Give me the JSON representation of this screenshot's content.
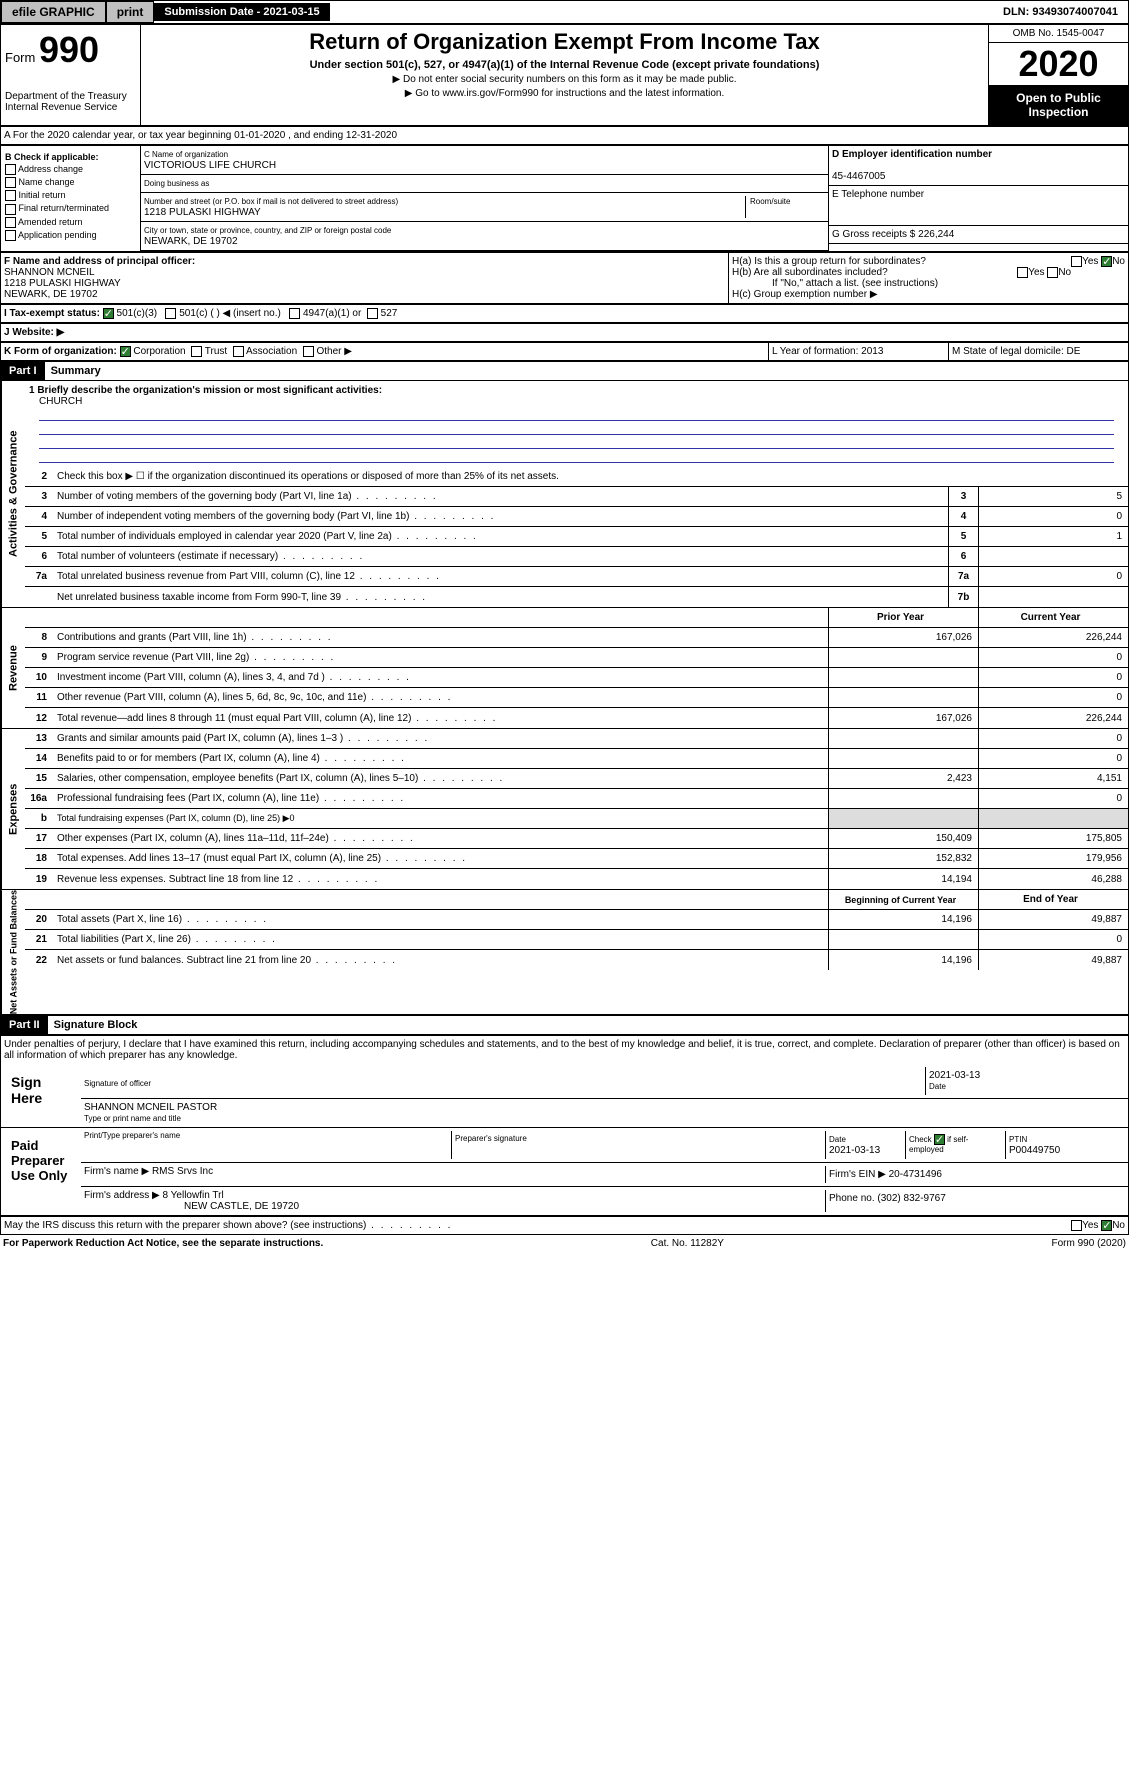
{
  "top": {
    "efile": "efile GRAPHIC",
    "print": "print",
    "sub_label": "Submission Date - 2021-03-15",
    "dln": "DLN: 93493074007041"
  },
  "header": {
    "form": "Form",
    "form_num": "990",
    "dept": "Department of the Treasury\nInternal Revenue Service",
    "title": "Return of Organization Exempt From Income Tax",
    "sub": "Under section 501(c), 527, or 4947(a)(1) of the Internal Revenue Code (except private foundations)",
    "note1": "▶ Do not enter social security numbers on this form as it may be made public.",
    "note2": "▶ Go to www.irs.gov/Form990 for instructions and the latest information.",
    "omb": "OMB No. 1545-0047",
    "year": "2020",
    "open": "Open to Public Inspection"
  },
  "sectionA": "A For the 2020 calendar year, or tax year beginning 01-01-2020    , and ending 12-31-2020",
  "colB": {
    "title": "B Check if applicable:",
    "items": [
      "Address change",
      "Name change",
      "Initial return",
      "Final return/terminated",
      "Amended return",
      "Application pending"
    ]
  },
  "colC": {
    "name_label": "C Name of organization",
    "name": "VICTORIOUS LIFE CHURCH",
    "dba": "Doing business as",
    "addr_label": "Number and street (or P.O. box if mail is not delivered to street address)",
    "addr": "1218 PULASKI HIGHWAY",
    "room": "Room/suite",
    "city_label": "City or town, state or province, country, and ZIP or foreign postal code",
    "city": "NEWARK, DE  19702"
  },
  "colD": {
    "ein_label": "D Employer identification number",
    "ein": "45-4467005",
    "phone_label": "E Telephone number",
    "gross_label": "G Gross receipts $ 226,244"
  },
  "sectionF": {
    "label": "F  Name and address of principal officer:",
    "name": "SHANNON MCNEIL",
    "addr": "1218 PULASKI HIGHWAY",
    "city": "NEWARK, DE  19702"
  },
  "sectionH": {
    "a": "H(a)  Is this a group return for subordinates?",
    "b": "H(b)  Are all subordinates included?",
    "b_note": "If \"No,\" attach a list. (see instructions)",
    "c": "H(c)  Group exemption number ▶"
  },
  "sectionI": {
    "label": "I    Tax-exempt status:",
    "opts": [
      "501(c)(3)",
      "501(c) (  ) ◀ (insert no.)",
      "4947(a)(1) or",
      "527"
    ]
  },
  "sectionJ": "J    Website: ▶",
  "sectionK": "K Form of organization:",
  "sectionK_opts": [
    "Corporation",
    "Trust",
    "Association",
    "Other ▶"
  ],
  "sectionL": "L Year of formation: 2013",
  "sectionM": "M State of legal domicile: DE",
  "part1": {
    "header": "Part I",
    "title": "Summary",
    "mission_label": "1  Briefly describe the organization's mission or most significant activities:",
    "mission": "CHURCH",
    "line2": "Check this box ▶ ☐  if the organization discontinued its operations or disposed of more than 25% of its net assets.",
    "vtabs": [
      "Activities & Governance",
      "Revenue",
      "Expenses",
      "Net Assets or Fund Balances"
    ],
    "lines_gov": [
      {
        "n": "3",
        "d": "Number of voting members of the governing body (Part VI, line 1a)",
        "box": "3",
        "v": "5"
      },
      {
        "n": "4",
        "d": "Number of independent voting members of the governing body (Part VI, line 1b)",
        "box": "4",
        "v": "0"
      },
      {
        "n": "5",
        "d": "Total number of individuals employed in calendar year 2020 (Part V, line 2a)",
        "box": "5",
        "v": "1"
      },
      {
        "n": "6",
        "d": "Total number of volunteers (estimate if necessary)",
        "box": "6",
        "v": ""
      },
      {
        "n": "7a",
        "d": "Total unrelated business revenue from Part VIII, column (C), line 12",
        "box": "7a",
        "v": "0"
      },
      {
        "n": "",
        "d": "Net unrelated business taxable income from Form 990-T, line 39",
        "box": "7b",
        "v": ""
      }
    ],
    "col_hdr": {
      "prior": "Prior Year",
      "current": "Current Year"
    },
    "lines_rev": [
      {
        "n": "8",
        "d": "Contributions and grants (Part VIII, line 1h)",
        "p": "167,026",
        "c": "226,244"
      },
      {
        "n": "9",
        "d": "Program service revenue (Part VIII, line 2g)",
        "p": "",
        "c": "0"
      },
      {
        "n": "10",
        "d": "Investment income (Part VIII, column (A), lines 3, 4, and 7d )",
        "p": "",
        "c": "0"
      },
      {
        "n": "11",
        "d": "Other revenue (Part VIII, column (A), lines 5, 6d, 8c, 9c, 10c, and 11e)",
        "p": "",
        "c": "0"
      },
      {
        "n": "12",
        "d": "Total revenue—add lines 8 through 11 (must equal Part VIII, column (A), line 12)",
        "p": "167,026",
        "c": "226,244"
      }
    ],
    "lines_exp": [
      {
        "n": "13",
        "d": "Grants and similar amounts paid (Part IX, column (A), lines 1–3 )",
        "p": "",
        "c": "0"
      },
      {
        "n": "14",
        "d": "Benefits paid to or for members (Part IX, column (A), line 4)",
        "p": "",
        "c": "0"
      },
      {
        "n": "15",
        "d": "Salaries, other compensation, employee benefits (Part IX, column (A), lines 5–10)",
        "p": "2,423",
        "c": "4,151"
      },
      {
        "n": "16a",
        "d": "Professional fundraising fees (Part IX, column (A), line 11e)",
        "p": "",
        "c": "0"
      },
      {
        "n": "b",
        "d": "Total fundraising expenses (Part IX, column (D), line 25) ▶0",
        "p": "—",
        "c": "—"
      },
      {
        "n": "17",
        "d": "Other expenses (Part IX, column (A), lines 11a–11d, 11f–24e)",
        "p": "150,409",
        "c": "175,805"
      },
      {
        "n": "18",
        "d": "Total expenses. Add lines 13–17 (must equal Part IX, column (A), line 25)",
        "p": "152,832",
        "c": "179,956"
      },
      {
        "n": "19",
        "d": "Revenue less expenses. Subtract line 18 from line 12",
        "p": "14,194",
        "c": "46,288"
      }
    ],
    "col_hdr2": {
      "prior": "Beginning of Current Year",
      "current": "End of Year"
    },
    "lines_net": [
      {
        "n": "20",
        "d": "Total assets (Part X, line 16)",
        "p": "14,196",
        "c": "49,887"
      },
      {
        "n": "21",
        "d": "Total liabilities (Part X, line 26)",
        "p": "",
        "c": "0"
      },
      {
        "n": "22",
        "d": "Net assets or fund balances. Subtract line 21 from line 20",
        "p": "14,196",
        "c": "49,887"
      }
    ]
  },
  "part2": {
    "header": "Part II",
    "title": "Signature Block",
    "decl": "Under penalties of perjury, I declare that I have examined this return, including accompanying schedules and statements, and to the best of my knowledge and belief, it is true, correct, and complete. Declaration of preparer (other than officer) is based on all information of which preparer has any knowledge.",
    "sign_here": "Sign Here",
    "sig_officer": "Signature of officer",
    "date": "2021-03-13",
    "date_label": "Date",
    "name": "SHANNON MCNEIL PASTOR",
    "name_label": "Type or print name and title",
    "paid": "Paid Preparer Use Only",
    "prep_name_label": "Print/Type preparer's name",
    "prep_sig_label": "Preparer's signature",
    "prep_date": "2021-03-13",
    "check_self": "Check ☑ if self-employed",
    "ptin_label": "PTIN",
    "ptin": "P00449750",
    "firm_name_label": "Firm's name    ▶",
    "firm_name": "RMS Srvs Inc",
    "firm_ein_label": "Firm's EIN ▶",
    "firm_ein": "20-4731496",
    "firm_addr_label": "Firm's address ▶",
    "firm_addr": "8 Yellowfin Trl",
    "firm_city": "NEW CASTLE, DE  19720",
    "phone_label": "Phone no.",
    "phone": "(302) 832-9767",
    "discuss": "May the IRS discuss this return with the preparer shown above? (see instructions)"
  },
  "footer": {
    "pra": "For Paperwork Reduction Act Notice, see the separate instructions.",
    "cat": "Cat. No. 11282Y",
    "form": "Form 990 (2020)"
  }
}
